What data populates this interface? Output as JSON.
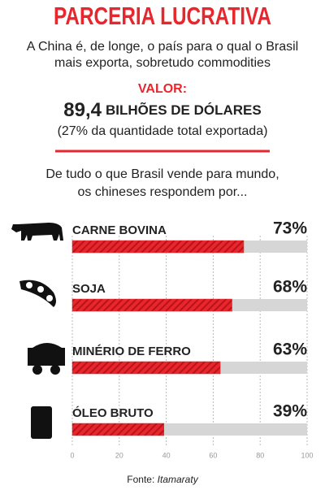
{
  "chart_data": {
    "type": "bar",
    "title": "PARCERIA LUCRATIVA",
    "subtitle": [
      "A China é, de longe, o país para o qual o Brasil",
      "mais exporta, sobretudo commodities"
    ],
    "value_heading": "VALOR:",
    "value_amount": "89,4",
    "value_unit": "BILHÕES DE DÓLARES",
    "value_note": "(27% da quantidade total exportada)",
    "intro": [
      "De tudo o que Brasil vende para mundo,",
      "os chineses respondem por..."
    ],
    "categories": [
      "CARNE BOVINA",
      "SOJA",
      "MINÉRIO DE FERRO",
      "ÓLEO BRUTO"
    ],
    "values": [
      73,
      68,
      63,
      39
    ],
    "value_labels": [
      "73%",
      "68%",
      "63%",
      "39%"
    ],
    "color": "#e8262d",
    "xlim": [
      0,
      100
    ],
    "xticks": [
      0,
      20,
      40,
      60,
      80,
      100
    ],
    "grid": true,
    "source_label": "Fonte:",
    "source": "Itamaraty"
  }
}
